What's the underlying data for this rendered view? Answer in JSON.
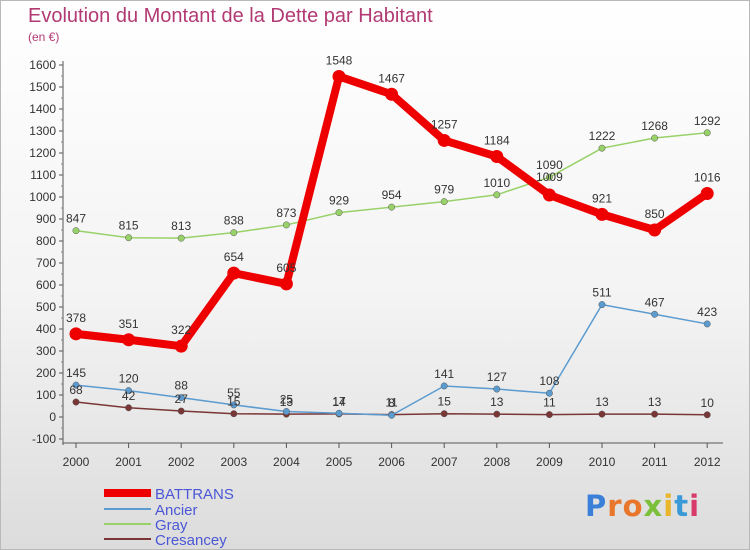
{
  "header": {
    "title": "Evolution du Montant de la Dette par Habitant",
    "subtitle": "(en €)"
  },
  "logo": {
    "text": "Proxiti",
    "colors": [
      "#3a7fd8",
      "#e8762b",
      "#e8762b",
      "#7bbf3a",
      "#e8b52b",
      "#3a9ad8",
      "#d83a6a"
    ]
  },
  "chart_data": {
    "type": "line",
    "title": "Evolution du Montant de la Dette par Habitant",
    "subtitle": "(en €)",
    "x": [
      "2000",
      "2001",
      "2002",
      "2003",
      "2004",
      "2005",
      "2006",
      "2007",
      "2008",
      "2009",
      "2010",
      "2011",
      "2012"
    ],
    "ylim": [
      -100,
      1600
    ],
    "yticks": [
      -100,
      0,
      100,
      200,
      300,
      400,
      500,
      600,
      700,
      800,
      900,
      1000,
      1100,
      1200,
      1300,
      1400,
      1500,
      1600
    ],
    "grid": false,
    "legend_position": "bottom-left",
    "series": [
      {
        "name": "BATTRANS",
        "color": "#ee0000",
        "width": 8,
        "values": [
          378,
          351,
          322,
          654,
          605,
          1548,
          1467,
          1257,
          1184,
          1009,
          921,
          850,
          1016
        ],
        "labels": [
          "378",
          "351",
          "322",
          "654",
          "605",
          "1548",
          "1467",
          "1257",
          "1184",
          "",
          "921",
          "850",
          "1016"
        ]
      },
      {
        "name": "Ancier",
        "color": "#5b9bd0",
        "width": 1.5,
        "values": [
          145,
          120,
          88,
          55,
          25,
          17,
          8,
          141,
          127,
          108,
          511,
          467,
          423
        ],
        "labels": [
          "145",
          "120",
          "88",
          "55",
          "25",
          "17",
          "8",
          "141",
          "127",
          "108",
          "511",
          "467",
          "423"
        ]
      },
      {
        "name": "Gray",
        "color": "#99d169",
        "width": 1.5,
        "values": [
          847,
          815,
          813,
          838,
          873,
          929,
          954,
          979,
          1010,
          1090,
          1222,
          1268,
          1292
        ],
        "labels": [
          "847",
          "815",
          "813",
          "838",
          "873",
          "929",
          "954",
          "979",
          "1010",
          "1090",
          "1222",
          "1268",
          "1292"
        ]
      },
      {
        "name": "Cresancey",
        "color": "#7a3535",
        "width": 1.5,
        "values": [
          68,
          42,
          27,
          15,
          13,
          14,
          11,
          15,
          13,
          11,
          13,
          13,
          10
        ],
        "labels": [
          "68",
          "42",
          "27",
          "15",
          "13",
          "14",
          "11",
          "15",
          "13",
          "11",
          "13",
          "13",
          "10"
        ]
      }
    ],
    "extra_labels": [
      {
        "series": "BATTRANS",
        "index": 9,
        "text": "1009"
      }
    ]
  }
}
